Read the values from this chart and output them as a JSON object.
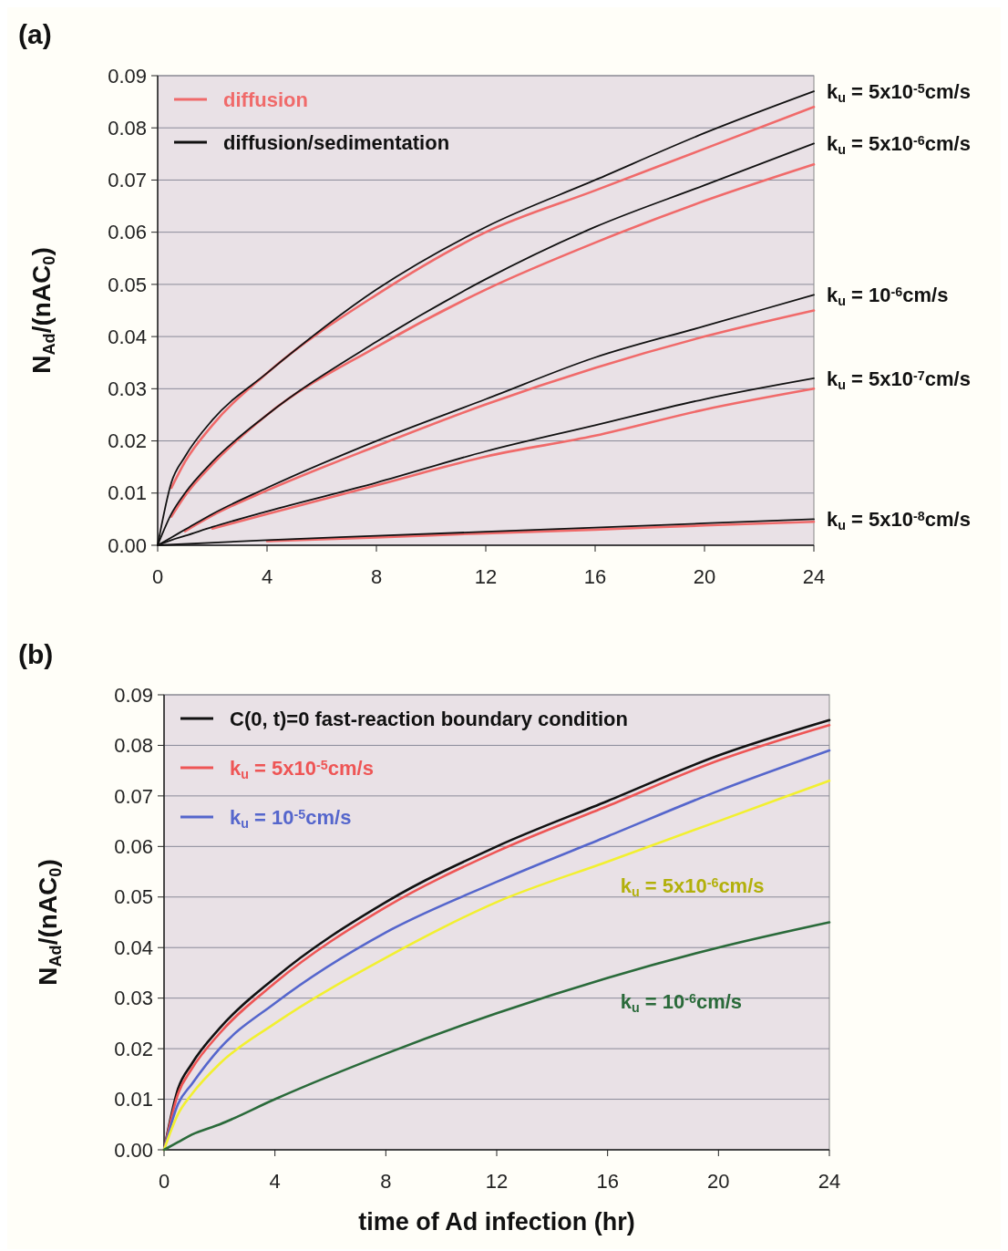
{
  "chart_data": [
    {
      "type": "line",
      "title": "(a)",
      "ylabel": "N$_{Ad}$/(nAC$_{0}$)",
      "xlim": [
        0,
        24
      ],
      "xticks": [
        0,
        4,
        8,
        12,
        16,
        20,
        24
      ],
      "ylim": [
        0,
        0.09
      ],
      "yticks": [
        {
          "value": 0,
          "label": "0.00"
        },
        {
          "value": 0.01,
          "label": "0.01"
        },
        {
          "value": 0.02,
          "label": "0.02"
        },
        {
          "value": 0.03,
          "label": "0.03"
        },
        {
          "value": 0.04,
          "label": "0.04"
        },
        {
          "value": 0.05,
          "label": "0.05"
        },
        {
          "value": 0.06,
          "label": "0.06"
        },
        {
          "value": 0.07,
          "label": "0.07"
        },
        {
          "value": 0.08,
          "label": "0.08"
        },
        {
          "value": 0.09,
          "label": "0.09"
        }
      ],
      "grid": "y",
      "legend": "top left",
      "marker": "none",
      "line_style": "solid",
      "x": [
        0,
        0.5,
        1,
        2,
        4,
        8,
        12,
        16,
        20,
        24
      ],
      "series": [
        {
          "name": "diffusion",
          "color": "#f06a6a",
          "values": [
            null,
            0.011,
            0.016,
            0.023,
            0.033,
            0.048,
            0.06,
            0.068,
            0.076,
            0.084
          ]
        },
        {
          "name": "diffusion/sedimentation",
          "color": "#111111",
          "values": [
            0,
            0.012,
            0.017,
            0.024,
            0.033,
            0.049,
            0.061,
            0.07,
            0.079,
            0.087
          ]
        },
        {
          "color": "#f06a6a",
          "values": [
            null,
            0.0055,
            0.0095,
            0.0155,
            0.025,
            0.038,
            0.049,
            0.058,
            0.066,
            0.073
          ]
        },
        {
          "color": "#111111",
          "values": [
            0,
            0.006,
            0.01,
            0.016,
            0.025,
            0.039,
            0.051,
            0.061,
            0.069,
            0.077
          ]
        },
        {
          "color": "#f06a6a",
          "values": [
            null,
            null,
            0.0027,
            0.0057,
            0.0105,
            0.019,
            0.027,
            0.034,
            0.04,
            0.045
          ]
        },
        {
          "color": "#111111",
          "values": [
            0,
            0.0015,
            0.003,
            0.006,
            0.011,
            0.02,
            0.028,
            0.036,
            0.042,
            0.048
          ]
        },
        {
          "color": "#f06a6a",
          "values": [
            null,
            null,
            null,
            0.0032,
            0.006,
            0.0115,
            0.017,
            0.021,
            0.026,
            0.03
          ]
        },
        {
          "color": "#111111",
          "values": [
            0,
            0.001,
            0.0018,
            0.0035,
            0.0065,
            0.012,
            0.018,
            0.023,
            0.028,
            0.032
          ]
        },
        {
          "color": "#f06a6a",
          "values": [
            null,
            null,
            null,
            null,
            0.0008,
            0.0015,
            0.0023,
            0.003,
            0.0038,
            0.0045
          ]
        },
        {
          "color": "#111111",
          "values": [
            0,
            null,
            null,
            null,
            0.001,
            0.0018,
            0.0026,
            0.0034,
            0.0042,
            0.005
          ]
        }
      ],
      "annotations": [
        "k$_{u}$ = 5x10$^{-5}$cm/s",
        "k$_{u}$ = 5x10$^{-6}$cm/s",
        "k$_{u}$ = 10$^{-6}$cm/s",
        "k$_{u}$ = 5x10$^{-7}$cm/s",
        "k$_{u}$ = 5x10$^{-8}$cm/s"
      ]
    },
    {
      "type": "line",
      "title": "(b)",
      "ylabel": "N$_{Ad}$/(nAC$_{0}$)",
      "xlabel": "time of Ad infection (hr)",
      "xlim": [
        0,
        24
      ],
      "xticks": [
        0,
        4,
        8,
        12,
        16,
        20,
        24
      ],
      "ylim": [
        0,
        0.09
      ],
      "yticks": [
        {
          "value": 0,
          "label": "0.00"
        },
        {
          "value": 0.01,
          "label": "0.01"
        },
        {
          "value": 0.02,
          "label": "0.02"
        },
        {
          "value": 0.03,
          "label": "0.03"
        },
        {
          "value": 0.04,
          "label": "0.04"
        },
        {
          "value": 0.05,
          "label": "0.05"
        },
        {
          "value": 0.06,
          "label": "0.06"
        },
        {
          "value": 0.07,
          "label": "0.07"
        },
        {
          "value": 0.08,
          "label": "0.08"
        },
        {
          "value": 0.09,
          "label": "0.09"
        }
      ],
      "grid": "y",
      "legend": "top left",
      "marker": "none",
      "line_style": "solid",
      "x": [
        0,
        0.5,
        1,
        2,
        4,
        8,
        12,
        16,
        20,
        24
      ],
      "series": [
        {
          "name": "C(0, t)=0 fast-reaction boundary condition",
          "color": "#111111",
          "values": [
            0,
            0.012,
            0.017,
            0.024,
            0.034,
            0.049,
            0.06,
            0.069,
            0.078,
            0.085
          ]
        },
        {
          "name": "k$_{u}$ = 5x10$^{-5}$cm/s",
          "color": "#ee5555",
          "values": [
            0,
            0.011,
            0.016,
            0.023,
            0.033,
            0.048,
            0.059,
            0.068,
            0.077,
            0.084
          ]
        },
        {
          "name": "k$_{u}$ = 10$^{-5}$cm/s",
          "color": "#5566cc",
          "values": [
            0,
            0.009,
            0.013,
            0.02,
            0.029,
            0.043,
            0.053,
            0.062,
            0.071,
            0.079
          ]
        },
        {
          "color": "#f2f030",
          "values": [
            0,
            0.007,
            0.011,
            0.017,
            0.025,
            0.038,
            0.049,
            0.057,
            0.065,
            0.073
          ]
        },
        {
          "color": "#2a6a3a",
          "values": [
            0,
            0.0015,
            0.003,
            0.005,
            0.01,
            0.019,
            0.027,
            0.034,
            0.04,
            0.045
          ]
        }
      ],
      "annotations": [
        "k$_{u}$ = 5x10$^{-6}$cm/s",
        "k$_{u}$ = 10$^{-6}$cm/s"
      ]
    }
  ]
}
